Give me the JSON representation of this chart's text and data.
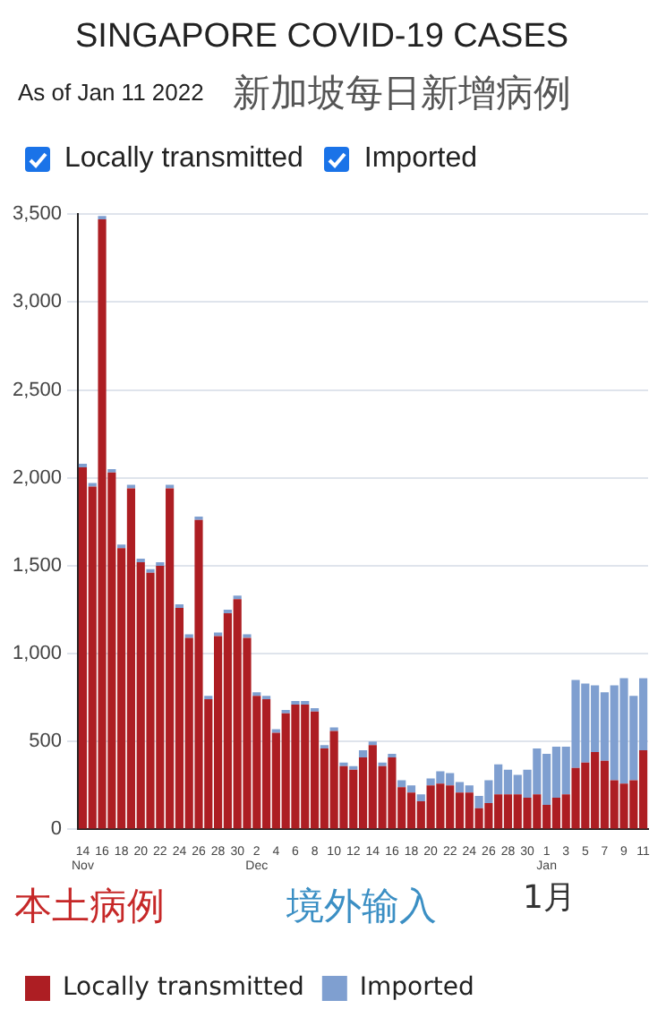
{
  "chart_data": {
    "type": "bar",
    "title": "SINGAPORE COVID-19 CASES",
    "subtitle": "As of Jan 11 2022",
    "annotations": [
      "新加坡每日新增病例",
      "本土病例",
      "境外输入",
      "1月"
    ],
    "categories": [
      "14\nNov",
      null,
      "16",
      null,
      "18",
      null,
      "20",
      null,
      "22",
      null,
      "24",
      null,
      "26",
      null,
      "28",
      null,
      "30",
      null,
      "2\nDec",
      null,
      "4",
      null,
      "6",
      null,
      "8",
      null,
      "10",
      null,
      "12",
      null,
      "14",
      null,
      "16",
      null,
      "18",
      null,
      "20",
      null,
      "22",
      null,
      "24",
      null,
      "26",
      null,
      "28",
      null,
      "30",
      null,
      "1\nJan",
      null,
      "3",
      null,
      "5",
      null,
      "7",
      null,
      "9",
      null,
      "11"
    ],
    "series": [
      {
        "name": "Locally transmitted",
        "color": "#ad1e23",
        "values": [
          2060,
          1950,
          3470,
          2030,
          1600,
          1940,
          1520,
          1460,
          1500,
          1940,
          1260,
          1090,
          1760,
          740,
          1100,
          1230,
          1310,
          1090,
          760,
          740,
          550,
          660,
          710,
          710,
          670,
          460,
          560,
          360,
          340,
          410,
          480,
          360,
          410,
          240,
          210,
          160,
          250,
          260,
          250,
          210,
          210,
          120,
          150,
          200,
          200,
          200,
          180,
          200,
          140,
          180,
          200,
          350,
          380,
          440,
          390,
          280,
          260,
          280,
          450
        ]
      },
      {
        "name": "Imported",
        "color": "#7f9fd0",
        "values": [
          20,
          20,
          20,
          20,
          20,
          20,
          20,
          20,
          20,
          20,
          20,
          20,
          20,
          20,
          20,
          20,
          20,
          20,
          20,
          20,
          20,
          20,
          20,
          20,
          20,
          20,
          20,
          20,
          20,
          40,
          20,
          20,
          20,
          40,
          40,
          40,
          40,
          70,
          70,
          60,
          40,
          70,
          130,
          170,
          140,
          110,
          160,
          260,
          290,
          290,
          270,
          500,
          450,
          380,
          390,
          540,
          600,
          480,
          410
        ]
      }
    ],
    "stacked": true,
    "ylim": [
      0,
      3500
    ],
    "yticks": [
      {
        "value": 0,
        "label": "0"
      },
      {
        "value": 500,
        "label": "500"
      },
      {
        "value": 1000,
        "label": "1,000"
      },
      {
        "value": 1500,
        "label": "1,500"
      },
      {
        "value": 2000,
        "label": "2,000"
      },
      {
        "value": 2500,
        "label": "2,500"
      },
      {
        "value": 3000,
        "label": "3,000"
      },
      {
        "value": 3500,
        "label": "3,500"
      }
    ],
    "grid": "y",
    "legend": "bottom"
  }
}
